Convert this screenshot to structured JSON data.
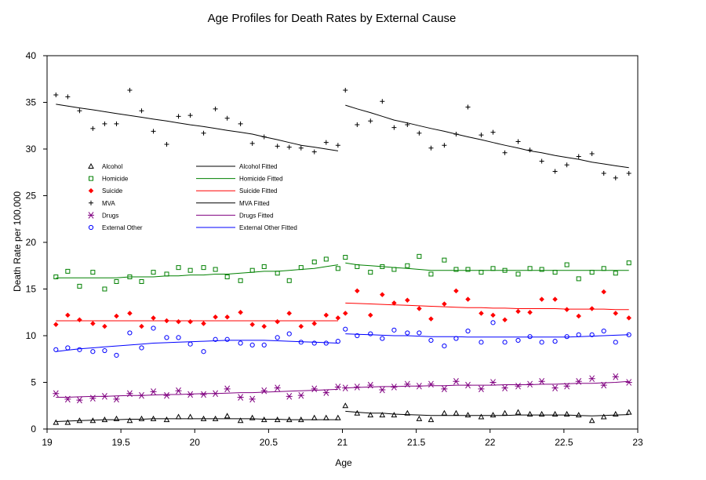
{
  "chart_data": {
    "type": "scatter",
    "title": "Age Profiles for Death Rates by External Cause",
    "xlabel": "Age",
    "ylabel": "Death Rate per 100,000",
    "xlim": [
      19,
      23
    ],
    "ylim": [
      0,
      40
    ],
    "xticks": [
      "19",
      "19.5",
      "20",
      "20.5",
      "21",
      "21.5",
      "22",
      "22.5",
      "23"
    ],
    "xtick_values": [
      19,
      19.5,
      20,
      20.5,
      21,
      21.5,
      22,
      22.5,
      23
    ],
    "yticks": [
      "0",
      "5",
      "10",
      "15",
      "20",
      "25",
      "30",
      "35",
      "40"
    ],
    "ytick_values": [
      0,
      5,
      10,
      15,
      20,
      25,
      30,
      35,
      40
    ],
    "grid": false,
    "legend_position": "upper-left",
    "x": [
      19.06,
      19.14,
      19.22,
      19.31,
      19.39,
      19.47,
      19.56,
      19.64,
      19.72,
      19.81,
      19.89,
      19.97,
      20.06,
      20.14,
      20.22,
      20.31,
      20.39,
      20.47,
      20.56,
      20.64,
      20.72,
      20.81,
      20.89,
      20.97,
      21.02,
      21.1,
      21.19,
      21.27,
      21.35,
      21.44,
      21.52,
      21.6,
      21.69,
      21.77,
      21.85,
      21.94,
      22.02,
      22.1,
      22.19,
      22.27,
      22.35,
      22.44,
      22.52,
      22.6,
      22.69,
      22.77,
      22.85,
      22.94
    ],
    "series": [
      {
        "name": "Alcohol",
        "fitted_name": "Alcohol Fitted",
        "color": "#000000",
        "fitted_color": "#000000",
        "marker": "triangle",
        "values": [
          0.7,
          0.7,
          0.9,
          0.9,
          1.0,
          1.1,
          0.9,
          1.1,
          1.1,
          1.0,
          1.3,
          1.3,
          1.1,
          1.1,
          1.4,
          0.9,
          1.2,
          1.0,
          1.0,
          1.0,
          1.0,
          1.2,
          1.2,
          1.2,
          2.5,
          1.7,
          1.5,
          1.5,
          1.5,
          1.7,
          1.1,
          1.0,
          1.7,
          1.7,
          1.5,
          1.3,
          1.5,
          1.7,
          1.8,
          1.6,
          1.6,
          1.6,
          1.6,
          1.5,
          0.9,
          1.3,
          1.6,
          1.8
        ],
        "fitted": [
          0.8,
          0.85,
          0.9,
          0.95,
          1.0,
          1.0,
          1.05,
          1.05,
          1.1,
          1.1,
          1.1,
          1.1,
          1.1,
          1.1,
          1.1,
          1.1,
          1.1,
          1.05,
          1.05,
          1.0,
          1.0,
          1.0,
          1.0,
          1.0,
          1.9,
          1.8,
          1.7,
          1.7,
          1.6,
          1.55,
          1.5,
          1.45,
          1.45,
          1.45,
          1.45,
          1.45,
          1.45,
          1.45,
          1.5,
          1.5,
          1.5,
          1.5,
          1.5,
          1.45,
          1.4,
          1.45,
          1.5,
          1.55
        ]
      },
      {
        "name": "Homicide",
        "fitted_name": "Homicide Fitted",
        "color": "#008000",
        "fitted_color": "#008000",
        "marker": "square",
        "values": [
          16.3,
          16.9,
          15.3,
          16.8,
          15.0,
          15.8,
          16.3,
          15.8,
          16.8,
          16.6,
          17.3,
          17.0,
          17.3,
          17.1,
          16.3,
          15.9,
          17.0,
          17.4,
          16.7,
          15.9,
          17.3,
          17.9,
          18.2,
          17.2,
          18.4,
          17.4,
          16.8,
          17.4,
          17.1,
          17.5,
          18.5,
          16.6,
          18.1,
          17.1,
          17.1,
          16.8,
          17.2,
          17.0,
          16.6,
          17.2,
          17.1,
          16.8,
          17.6,
          16.1,
          16.8,
          17.2,
          16.7,
          17.8
        ],
        "fitted": [
          16.2,
          16.2,
          16.2,
          16.2,
          16.2,
          16.2,
          16.3,
          16.3,
          16.3,
          16.4,
          16.4,
          16.5,
          16.5,
          16.6,
          16.6,
          16.7,
          16.8,
          16.9,
          16.9,
          17.0,
          17.1,
          17.2,
          17.4,
          17.6,
          17.8,
          17.6,
          17.5,
          17.4,
          17.3,
          17.2,
          17.1,
          17.0,
          17.0,
          17.0,
          17.0,
          17.0,
          17.0,
          17.0,
          17.0,
          17.0,
          17.0,
          17.0,
          17.0,
          17.0,
          17.0,
          17.0,
          17.0,
          17.0
        ]
      },
      {
        "name": "Suicide",
        "fitted_name": "Suicide Fitted",
        "color": "#ff0000",
        "fitted_color": "#ff0000",
        "marker": "diamond",
        "values": [
          11.2,
          12.2,
          11.7,
          11.3,
          11.0,
          12.1,
          12.4,
          11.0,
          11.9,
          11.6,
          11.5,
          11.5,
          11.3,
          12.0,
          12.0,
          12.5,
          11.2,
          11.0,
          11.5,
          12.4,
          11.0,
          11.3,
          12.2,
          11.9,
          12.4,
          14.8,
          12.2,
          14.4,
          13.5,
          13.8,
          12.9,
          11.8,
          13.4,
          14.8,
          13.9,
          12.4,
          12.2,
          11.7,
          12.6,
          12.5,
          13.9,
          13.9,
          12.8,
          12.1,
          12.9,
          14.7,
          12.4,
          11.9
        ],
        "fitted": [
          11.6,
          11.6,
          11.6,
          11.6,
          11.6,
          11.6,
          11.6,
          11.6,
          11.6,
          11.6,
          11.6,
          11.6,
          11.6,
          11.6,
          11.6,
          11.6,
          11.6,
          11.6,
          11.6,
          11.6,
          11.6,
          11.6,
          11.6,
          11.6,
          13.5,
          13.45,
          13.4,
          13.35,
          13.3,
          13.25,
          13.2,
          13.15,
          13.1,
          13.05,
          13.0,
          13.0,
          12.95,
          12.95,
          12.9,
          12.9,
          12.9,
          12.9,
          12.85,
          12.85,
          12.85,
          12.85,
          12.8,
          12.8
        ]
      },
      {
        "name": "MVA",
        "fitted_name": "MVA Fitted",
        "color": "#000000",
        "fitted_color": "#000000",
        "marker": "plus",
        "values": [
          35.8,
          35.6,
          34.1,
          32.2,
          32.7,
          32.7,
          36.3,
          34.1,
          31.9,
          30.5,
          33.5,
          33.6,
          31.7,
          34.3,
          33.3,
          32.7,
          30.6,
          31.3,
          30.3,
          30.2,
          30.1,
          29.7,
          30.7,
          30.4,
          36.3,
          32.6,
          33.0,
          35.1,
          32.3,
          32.6,
          31.7,
          30.1,
          30.4,
          31.6,
          34.5,
          31.5,
          31.8,
          29.6,
          30.8,
          29.9,
          28.7,
          27.6,
          28.3,
          29.2,
          29.5,
          27.4,
          26.9,
          27.4
        ],
        "fitted": [
          34.8,
          34.6,
          34.4,
          34.2,
          34.0,
          33.8,
          33.6,
          33.4,
          33.2,
          33.0,
          32.8,
          32.6,
          32.4,
          32.2,
          32.0,
          31.8,
          31.6,
          31.3,
          31.0,
          30.7,
          30.4,
          30.2,
          30.0,
          29.8,
          34.7,
          34.3,
          33.9,
          33.5,
          33.1,
          32.8,
          32.5,
          32.2,
          31.9,
          31.6,
          31.3,
          31.0,
          30.7,
          30.4,
          30.1,
          29.8,
          29.6,
          29.3,
          29.1,
          28.9,
          28.6,
          28.4,
          28.2,
          28.0
        ]
      },
      {
        "name": "Drugs",
        "fitted_name": "Drugs Fitted",
        "color": "#800080",
        "fitted_color": "#800080",
        "marker": "asterisk",
        "values": [
          3.8,
          3.2,
          3.1,
          3.3,
          3.5,
          3.2,
          3.8,
          3.6,
          4.0,
          3.6,
          4.1,
          3.7,
          3.7,
          3.8,
          4.3,
          3.4,
          3.2,
          4.1,
          4.4,
          3.5,
          3.6,
          4.3,
          3.9,
          4.5,
          4.4,
          4.5,
          4.7,
          4.2,
          4.5,
          4.8,
          4.6,
          4.8,
          4.3,
          5.1,
          4.7,
          4.3,
          5.0,
          4.4,
          4.6,
          4.8,
          5.1,
          4.4,
          4.6,
          5.1,
          5.4,
          4.7,
          5.6,
          5.0
        ],
        "fitted": [
          3.4,
          3.4,
          3.45,
          3.5,
          3.5,
          3.55,
          3.6,
          3.6,
          3.65,
          3.7,
          3.7,
          3.75,
          3.8,
          3.8,
          3.85,
          3.9,
          3.9,
          3.95,
          4.0,
          4.05,
          4.1,
          4.15,
          4.2,
          4.25,
          4.4,
          4.45,
          4.5,
          4.55,
          4.55,
          4.6,
          4.6,
          4.65,
          4.65,
          4.7,
          4.7,
          4.7,
          4.7,
          4.75,
          4.75,
          4.75,
          4.8,
          4.8,
          4.85,
          4.9,
          4.9,
          4.95,
          5.0,
          5.1
        ]
      },
      {
        "name": "External Other",
        "fitted_name": "External Other Fitted",
        "color": "#0000ff",
        "fitted_color": "#0000ff",
        "marker": "circle",
        "values": [
          8.5,
          8.7,
          8.5,
          8.3,
          8.4,
          7.9,
          10.3,
          8.7,
          10.8,
          9.8,
          9.8,
          9.1,
          8.3,
          9.6,
          9.6,
          9.2,
          9.0,
          9.0,
          9.8,
          10.2,
          9.3,
          9.2,
          9.2,
          9.4,
          10.7,
          10.0,
          10.2,
          9.7,
          10.6,
          10.3,
          10.3,
          9.5,
          8.9,
          9.7,
          10.5,
          9.3,
          11.4,
          9.3,
          9.5,
          9.9,
          9.3,
          9.4,
          9.9,
          10.1,
          10.1,
          10.5,
          9.3,
          10.1
        ],
        "fitted": [
          8.3,
          8.45,
          8.6,
          8.7,
          8.8,
          8.9,
          9.0,
          9.1,
          9.2,
          9.25,
          9.3,
          9.35,
          9.4,
          9.45,
          9.5,
          9.5,
          9.5,
          9.5,
          9.45,
          9.4,
          9.35,
          9.3,
          9.25,
          9.2,
          10.2,
          10.15,
          10.1,
          10.05,
          10.0,
          10.0,
          9.95,
          9.9,
          9.9,
          9.9,
          9.85,
          9.85,
          9.85,
          9.85,
          9.85,
          9.85,
          9.85,
          9.85,
          9.85,
          9.9,
          9.95,
          10.0,
          10.05,
          10.1
        ]
      }
    ]
  }
}
